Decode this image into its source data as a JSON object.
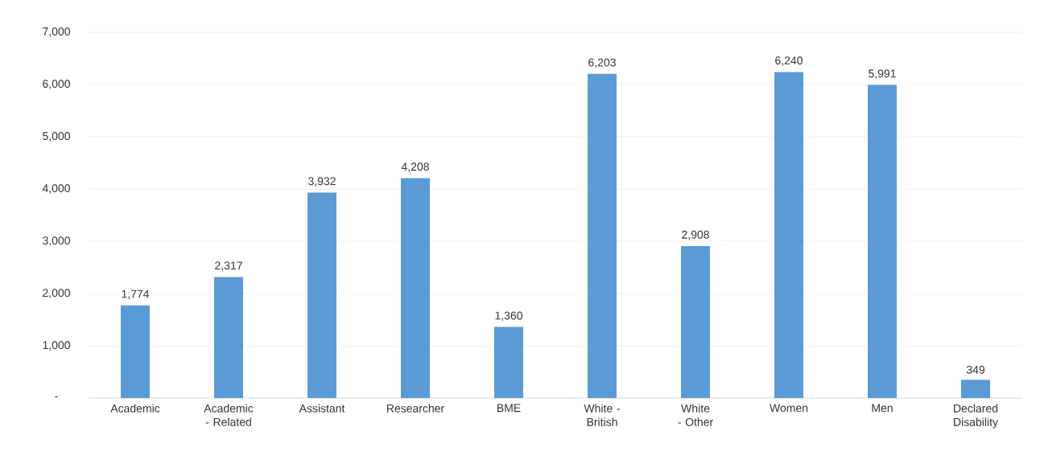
{
  "chart_data": {
    "type": "bar",
    "categories": [
      "Academic",
      "Academic - Related",
      "Assistant",
      "Researcher",
      "BME",
      "White - British",
      "White - Other",
      "Women",
      "Men",
      "Declared Disability"
    ],
    "values": [
      1774,
      2317,
      3932,
      4208,
      1360,
      6203,
      2908,
      6240,
      5991,
      349
    ],
    "value_labels": [
      "1,774",
      "2,317",
      "3,932",
      "4,208",
      "1,360",
      "6,203",
      "2,908",
      "6,240",
      "5,991",
      "349"
    ],
    "color": "#5b9bd5",
    "ylim": [
      0,
      7000
    ],
    "yticks": [
      {
        "value": 0,
        "label": "-"
      },
      {
        "value": 1000,
        "label": "1,000"
      },
      {
        "value": 2000,
        "label": "2,000"
      },
      {
        "value": 3000,
        "label": "3,000"
      },
      {
        "value": 4000,
        "label": "4,000"
      },
      {
        "value": 5000,
        "label": "5,000"
      },
      {
        "value": 6000,
        "label": "6,000"
      },
      {
        "value": 7000,
        "label": "7,000"
      }
    ],
    "grid": "y"
  }
}
